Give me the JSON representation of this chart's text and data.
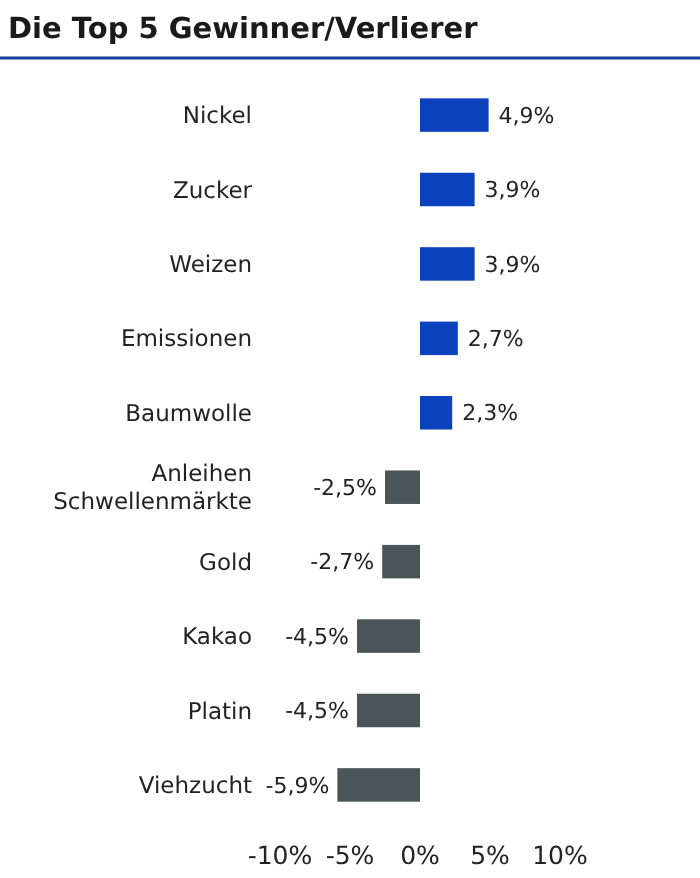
{
  "chart_data": {
    "type": "bar",
    "orientation": "horizontal",
    "title": "Die Top 5 Gewinner/Verlierer",
    "categories": [
      "Nickel",
      "Zucker",
      "Weizen",
      "Emissionen",
      "Baumwolle",
      "Anleihen Schwellenmärkte",
      "Gold",
      "Kakao",
      "Platin",
      "Viehzucht"
    ],
    "values": [
      4.9,
      3.9,
      3.9,
      2.7,
      2.3,
      -2.5,
      -2.7,
      -4.5,
      -4.5,
      -5.9
    ],
    "colors": [
      "#0b41bd",
      "#0b41bd",
      "#0b41bd",
      "#0b41bd",
      "#0b41bd",
      "#4b5457",
      "#4b5457",
      "#4b5457",
      "#4b5457",
      "#4b5457"
    ],
    "value_labels": [
      "4,9%",
      "3,9%",
      "3,9%",
      "2,7%",
      "2,3%",
      "-2,5%",
      "-2,7%",
      "-4,5%",
      "-4,5%",
      "-5,9%"
    ],
    "xlim": [
      -10,
      10
    ],
    "xticks": [
      {
        "value": -10,
        "label": "-10%"
      },
      {
        "value": -5,
        "label": "-5%"
      },
      {
        "value": 0,
        "label": "0%"
      },
      {
        "value": 5,
        "label": "5%"
      },
      {
        "value": 10,
        "label": "10%"
      }
    ],
    "grid": false
  }
}
